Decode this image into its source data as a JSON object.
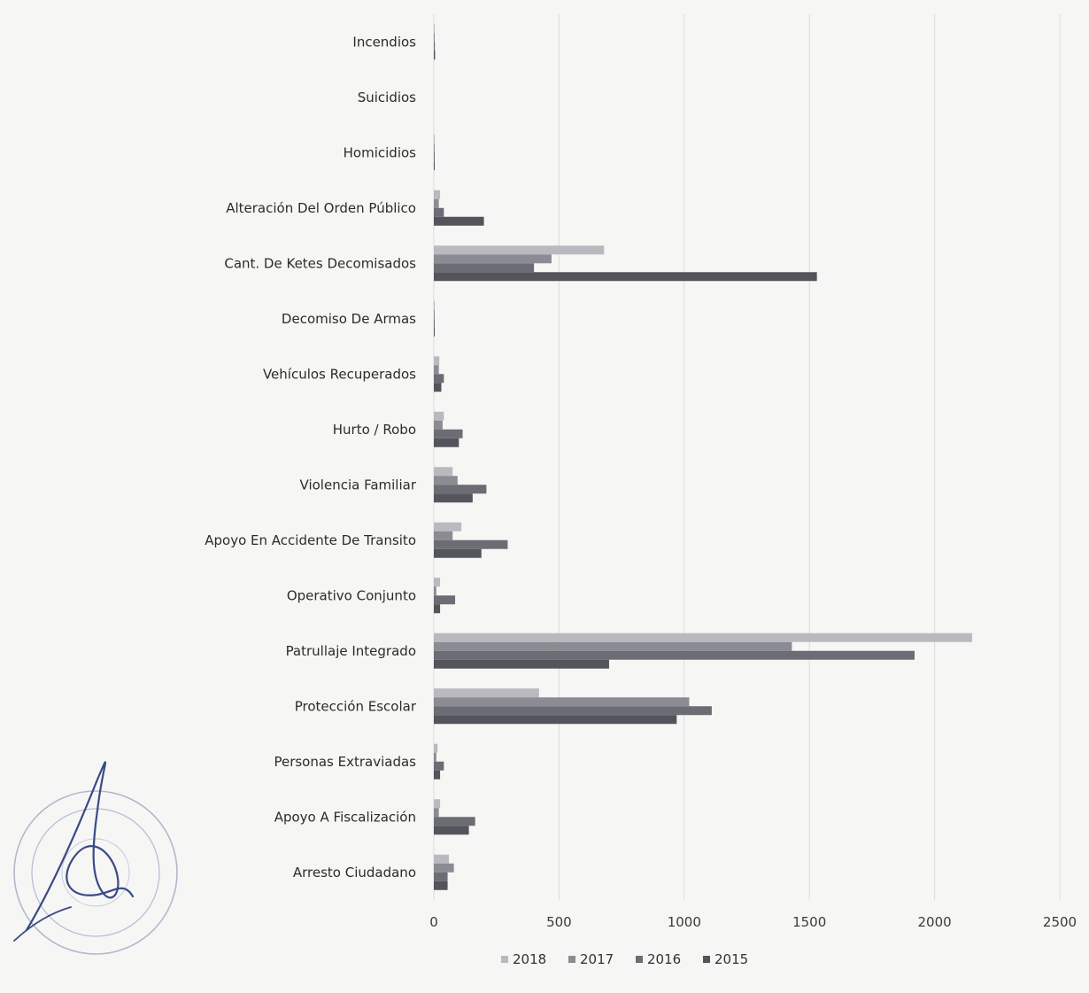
{
  "chart_data": {
    "type": "bar",
    "orientation": "horizontal",
    "categories": [
      "Incendios",
      "Suicidios",
      "Homicidios",
      "Alteración Del Orden Público",
      "Cant. De Ketes Decomisados",
      "Decomiso De Armas",
      "Vehículos Recuperados",
      "Hurto / Robo",
      "Violencia Familiar",
      "Apoyo En Accidente De Transito",
      "Operativo Conjunto",
      "Patrullaje Integrado",
      "Protección Escolar",
      "Personas Extraviadas",
      "Apoyo A Fiscalización",
      "Arresto Ciudadano"
    ],
    "series": [
      {
        "name": "2018",
        "color": "#b9b9bf",
        "values": [
          3,
          0,
          1,
          25,
          680,
          1,
          22,
          40,
          75,
          110,
          25,
          2150,
          420,
          15,
          25,
          60
        ]
      },
      {
        "name": "2017",
        "color": "#8b8b93",
        "values": [
          3,
          0,
          1,
          20,
          470,
          1,
          20,
          35,
          95,
          75,
          10,
          1430,
          1020,
          10,
          20,
          80
        ]
      },
      {
        "name": "2016",
        "color": "#6c6c74",
        "values": [
          4,
          0,
          1,
          40,
          400,
          2,
          40,
          115,
          210,
          295,
          85,
          1920,
          1110,
          40,
          165,
          55
        ]
      },
      {
        "name": "2015",
        "color": "#54545c",
        "values": [
          5,
          0,
          2,
          200,
          1530,
          2,
          30,
          100,
          155,
          190,
          25,
          700,
          970,
          25,
          140,
          55
        ]
      }
    ],
    "xlim": [
      0,
      2500
    ],
    "xticks": [
      "0",
      "500",
      "1000",
      "1500",
      "2000",
      "2500"
    ],
    "grid": "vertical",
    "legend_position": "bottom"
  }
}
